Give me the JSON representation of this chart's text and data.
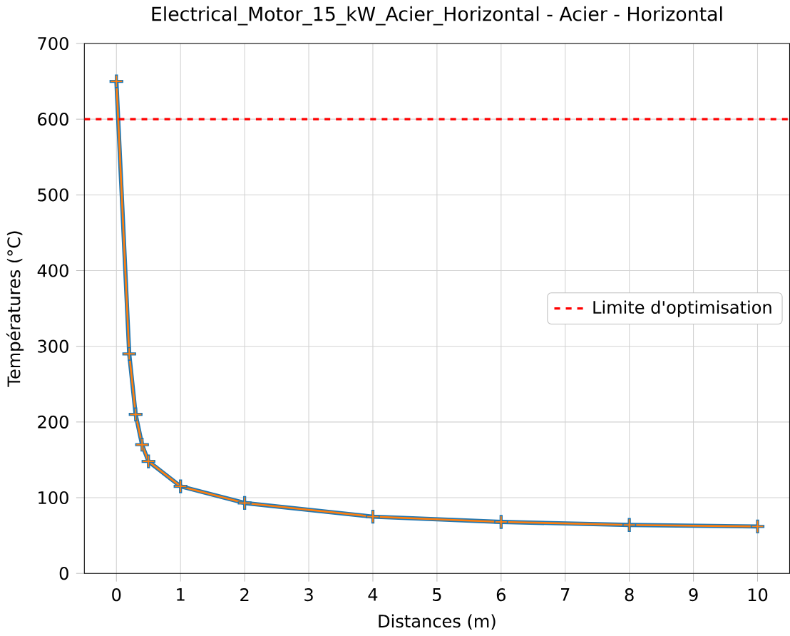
{
  "chart_data": {
    "type": "line",
    "title": "Electrical_Motor_15_kW_Acier_Horizontal - Acier - Horizontal",
    "xlabel": "Distances (m)",
    "ylabel": "Températures (°C)",
    "x": [
      0,
      0.2,
      0.3,
      0.4,
      0.5,
      1,
      2,
      4,
      6,
      8,
      10
    ],
    "series": [
      {
        "color": "#1f77b4",
        "values": [
          650,
          290,
          210,
          170,
          148,
          115,
          93,
          75,
          68,
          64,
          62
        ]
      },
      {
        "color": "#ff7f0e",
        "values": [
          650,
          290,
          210,
          170,
          148,
          115,
          93,
          75,
          68,
          64,
          62
        ]
      }
    ],
    "marker": "cross",
    "grid": true,
    "legend": "right",
    "xlim": [
      -0.5,
      10.5
    ],
    "ylim": [
      0,
      700
    ],
    "xticks": [
      0,
      1,
      2,
      3,
      4,
      5,
      6,
      7,
      8,
      9,
      10
    ],
    "yticks": [
      0,
      100,
      200,
      300,
      400,
      500,
      600,
      700
    ],
    "ref_lines": [
      {
        "axis": "y",
        "value": 600,
        "label": "Limite d'optimisation",
        "color": "#ff0000",
        "line_style": "dashed"
      }
    ]
  }
}
